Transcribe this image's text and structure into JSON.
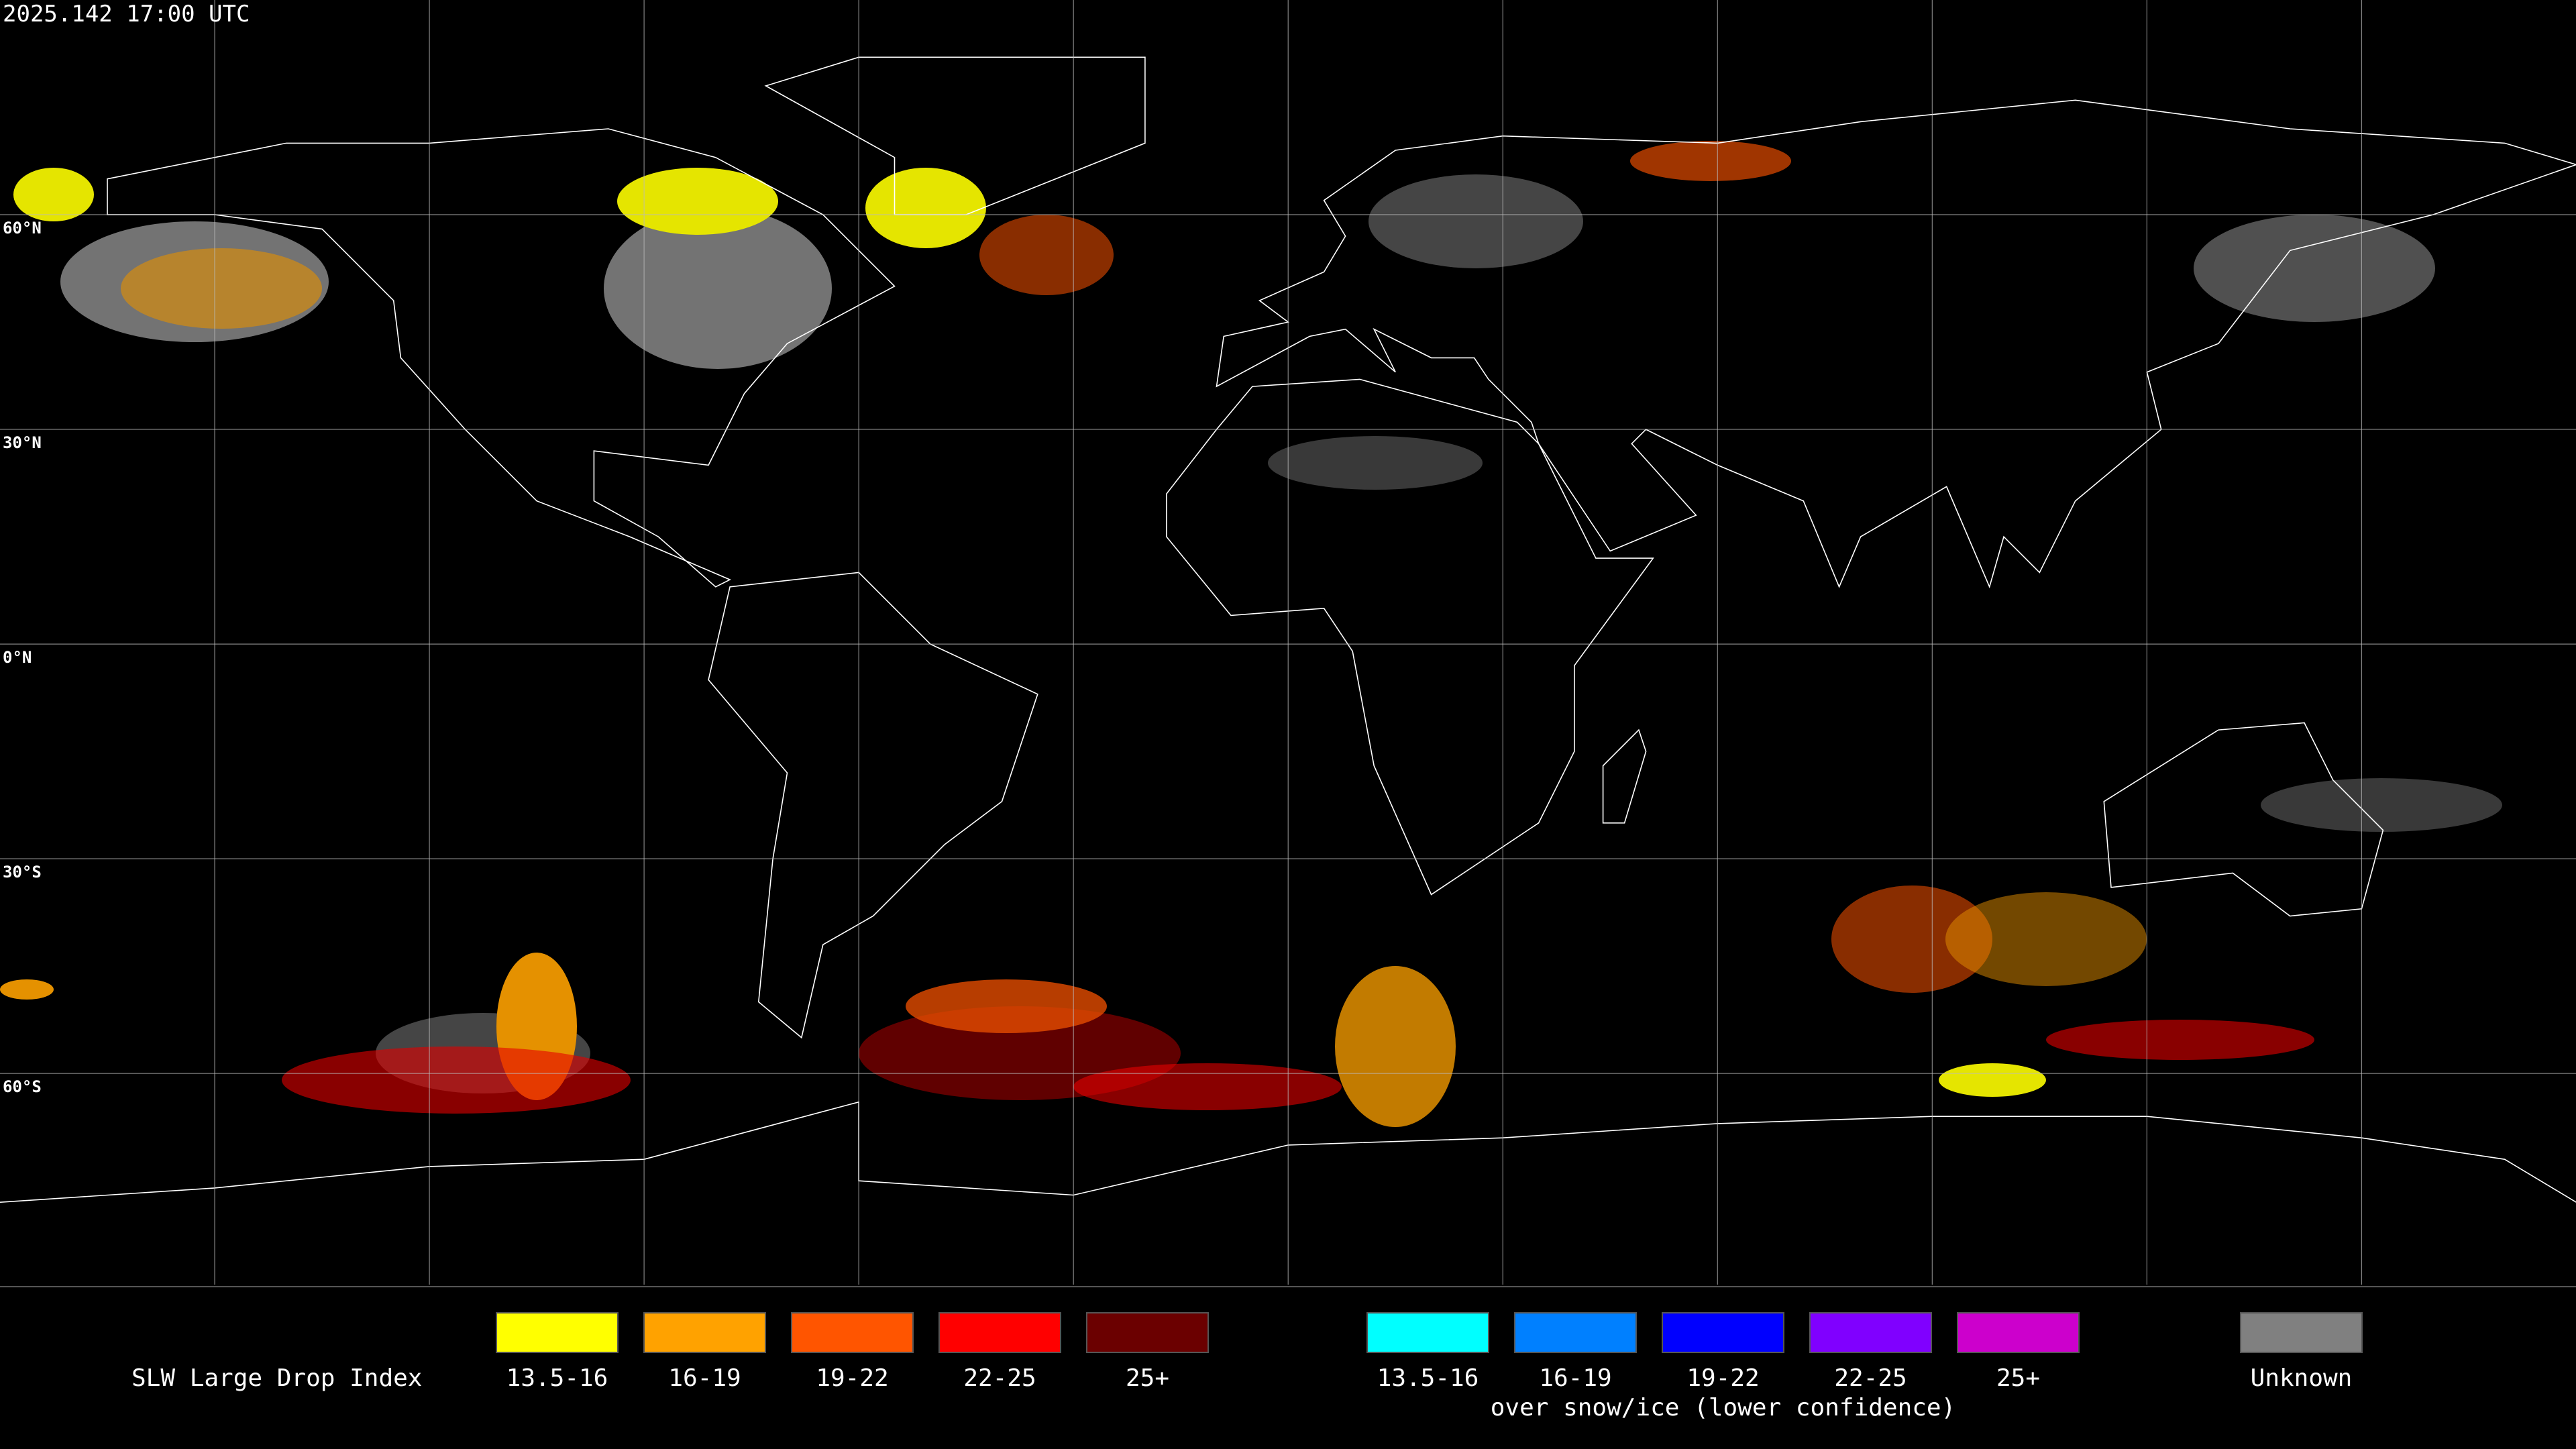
{
  "header": {
    "timestamp": "2025.142 17:00 UTC"
  },
  "map": {
    "latitude_labels": [
      "60°N",
      "30°N",
      "0°N",
      "30°S",
      "60°S"
    ]
  },
  "legend": {
    "title": "SLW Large Drop Index",
    "groups": [
      {
        "items": [
          {
            "label": "13.5-16",
            "color": "#ffff00"
          },
          {
            "label": "16-19",
            "color": "#ffa200"
          },
          {
            "label": "19-22",
            "color": "#ff5500"
          },
          {
            "label": "22-25",
            "color": "#ff0000"
          },
          {
            "label": "25+",
            "color": "#6b0000"
          }
        ]
      },
      {
        "items": [
          {
            "label": "13.5-16",
            "color": "#00ffff"
          },
          {
            "label": "16-19",
            "color": "#0080ff"
          },
          {
            "label": "19-22",
            "color": "#0000ff"
          },
          {
            "label": "22-25",
            "color": "#8000ff"
          },
          {
            "label": "25+",
            "color": "#cc00cc"
          }
        ],
        "caption": "over snow/ice (lower confidence)"
      },
      {
        "items": [
          {
            "label": "Unknown",
            "color": "#808080"
          }
        ]
      }
    ]
  }
}
